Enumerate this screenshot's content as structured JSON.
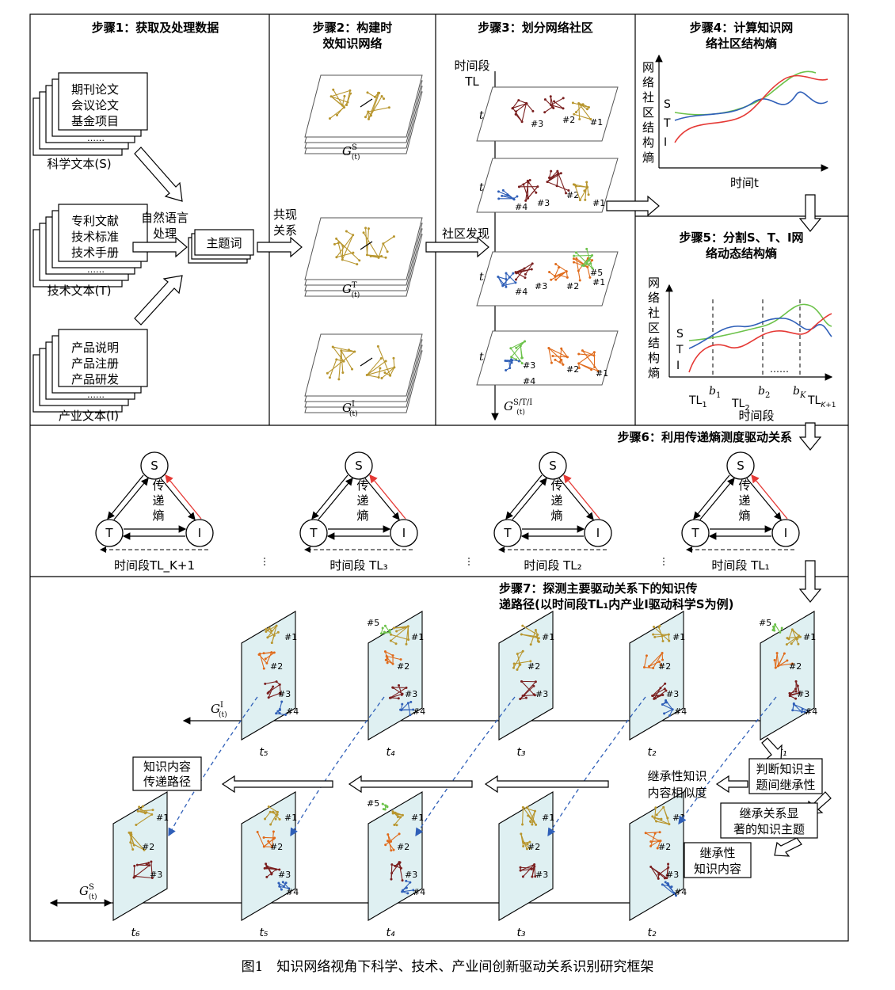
{
  "steps": {
    "s1": "步骤1：获取及处理数据",
    "s2a": "步骤2：构建时",
    "s2b": "效知识网络",
    "s3": "步骤3：划分网络社区",
    "s4a": "步骤4：计算知识网",
    "s4b": "络社区结构熵",
    "s5a": "步骤5：分割S、T、I网",
    "s5b": "络动态结构熵",
    "s6": "步骤6：利用传递熵测度驱动关系",
    "s7a": "步骤7：探测主要驱动关系下的知识传",
    "s7b": "递路径(以时间段TL₁内产业I驱动科学S为例)"
  },
  "docs": {
    "sci": [
      "期刊论文",
      "会议论文",
      "基金项目",
      "……"
    ],
    "sci_label": "科学文本(S)",
    "tech": [
      "专利文献",
      "技术标准",
      "技术手册",
      "……"
    ],
    "tech_label": "技术文本(T)",
    "ind": [
      "产品说明",
      "产品注册",
      "产品研发",
      "……"
    ],
    "ind_label": "产业文本(I)"
  },
  "flow": {
    "nlp1": "自然语言",
    "nlp2": "处理",
    "topic": "主题词",
    "cooc1": "共现",
    "cooc2": "关系",
    "community": "社区发现"
  },
  "nets": {
    "gs": "G",
    "gs_sup": "S",
    "gt_sup": "T",
    "gi_sup": "I",
    "sub": "(t)"
  },
  "step3": {
    "axis_top1": "时间段",
    "axis_top2": "TL",
    "t_labels": [
      "t₁",
      "t₂",
      "t₃",
      "t₄"
    ],
    "axis_bottom_sup": "S/T/I",
    "communities": [
      "#1",
      "#2",
      "#3",
      "#4",
      "#5"
    ]
  },
  "step4": {
    "ylabel": [
      "网",
      "络",
      "社",
      "区",
      "结",
      "构",
      "熵"
    ],
    "xlabel": "时间t",
    "series": [
      "S",
      "T",
      "I"
    ]
  },
  "step5": {
    "ylabel": [
      "网",
      "络",
      "社",
      "区",
      "结",
      "构",
      "熵"
    ],
    "xlabel": "时间段",
    "series": [
      "S",
      "T",
      "I"
    ],
    "ticks": [
      "TL₁",
      "b₁",
      "TL₂",
      "b₂",
      "……",
      "b_K",
      "TL_K+1"
    ]
  },
  "step6": {
    "nodes": [
      "S",
      "T",
      "I"
    ],
    "center": [
      "传",
      "递",
      "熵"
    ],
    "periods": [
      "时间段TL_K+1",
      "时间段 TL₃",
      "时间段 TL₂",
      "时间段 TL₁"
    ]
  },
  "step7": {
    "t_top": [
      "t₅",
      "t₄",
      "t₃",
      "t₂",
      "t₁"
    ],
    "t_bottom": [
      "t₆",
      "t₅",
      "t₄",
      "t₃",
      "t₂"
    ],
    "g_top_sup": "I",
    "g_bottom_sup": "S",
    "path_box": [
      "知识内容",
      "传递路径"
    ],
    "similarity": [
      "继承性知识",
      "内容相似度"
    ],
    "judge": [
      "判断知识主",
      "题间继承性"
    ],
    "significant": [
      "继承关系显",
      "著的知识主题"
    ],
    "inherit": [
      "继承性",
      "知识内容"
    ]
  },
  "caption": "图1　知识网络视角下科学、技术、产业间创新驱动关系识别研究框架",
  "colors": {
    "gold": "#b8962e",
    "orange": "#e06a1a",
    "maroon": "#7a1f1f",
    "blue": "#2f5fb8",
    "green": "#6cc24a",
    "red": "#e53935",
    "panel": "#dff0f2"
  }
}
